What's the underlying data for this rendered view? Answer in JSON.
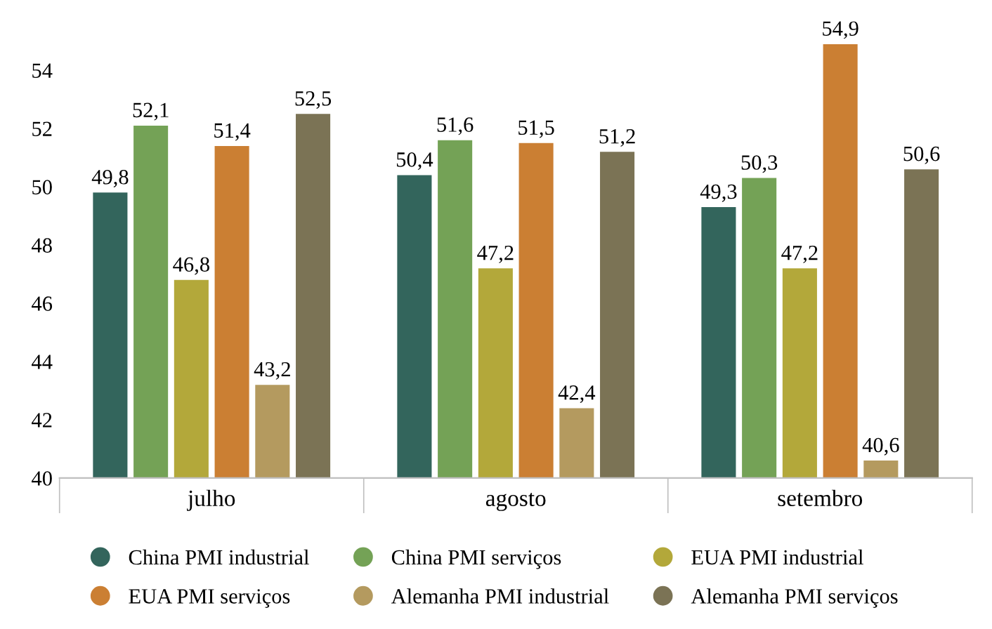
{
  "chart_data": {
    "type": "bar",
    "categories": [
      "julho",
      "agosto",
      "setembro"
    ],
    "series": [
      {
        "name": "China PMI industrial",
        "color": "#33655c",
        "values": [
          49.8,
          50.4,
          49.3
        ],
        "value_labels": [
          "49,8",
          "50,4",
          "49,3"
        ]
      },
      {
        "name": "China PMI serviços",
        "color": "#74a256",
        "values": [
          52.1,
          51.6,
          50.3
        ],
        "value_labels": [
          "52,1",
          "51,6",
          "50,3"
        ]
      },
      {
        "name": "EUA PMI industrial",
        "color": "#b3a83a",
        "values": [
          46.8,
          47.2,
          47.2
        ],
        "value_labels": [
          "46,8",
          "47,2",
          "47,2"
        ]
      },
      {
        "name": "EUA PMI serviços",
        "color": "#cb7f33",
        "values": [
          51.4,
          51.5,
          54.9
        ],
        "value_labels": [
          "51,4",
          "51,5",
          "54,9"
        ]
      },
      {
        "name": "Alemanha PMI industrial",
        "color": "#b49a5f",
        "values": [
          43.2,
          42.4,
          40.6
        ],
        "value_labels": [
          "43,2",
          "42,4",
          "40,6"
        ]
      },
      {
        "name": "Alemanha PMI serviços",
        "color": "#7b7355",
        "values": [
          52.5,
          51.2,
          50.6
        ],
        "value_labels": [
          "52,5",
          "51,2",
          "50,6"
        ]
      }
    ],
    "ylim": [
      40,
      54.9
    ],
    "yticks": [
      40,
      42,
      44,
      46,
      48,
      50,
      52,
      54
    ],
    "grid": false,
    "legend": "bottom"
  }
}
